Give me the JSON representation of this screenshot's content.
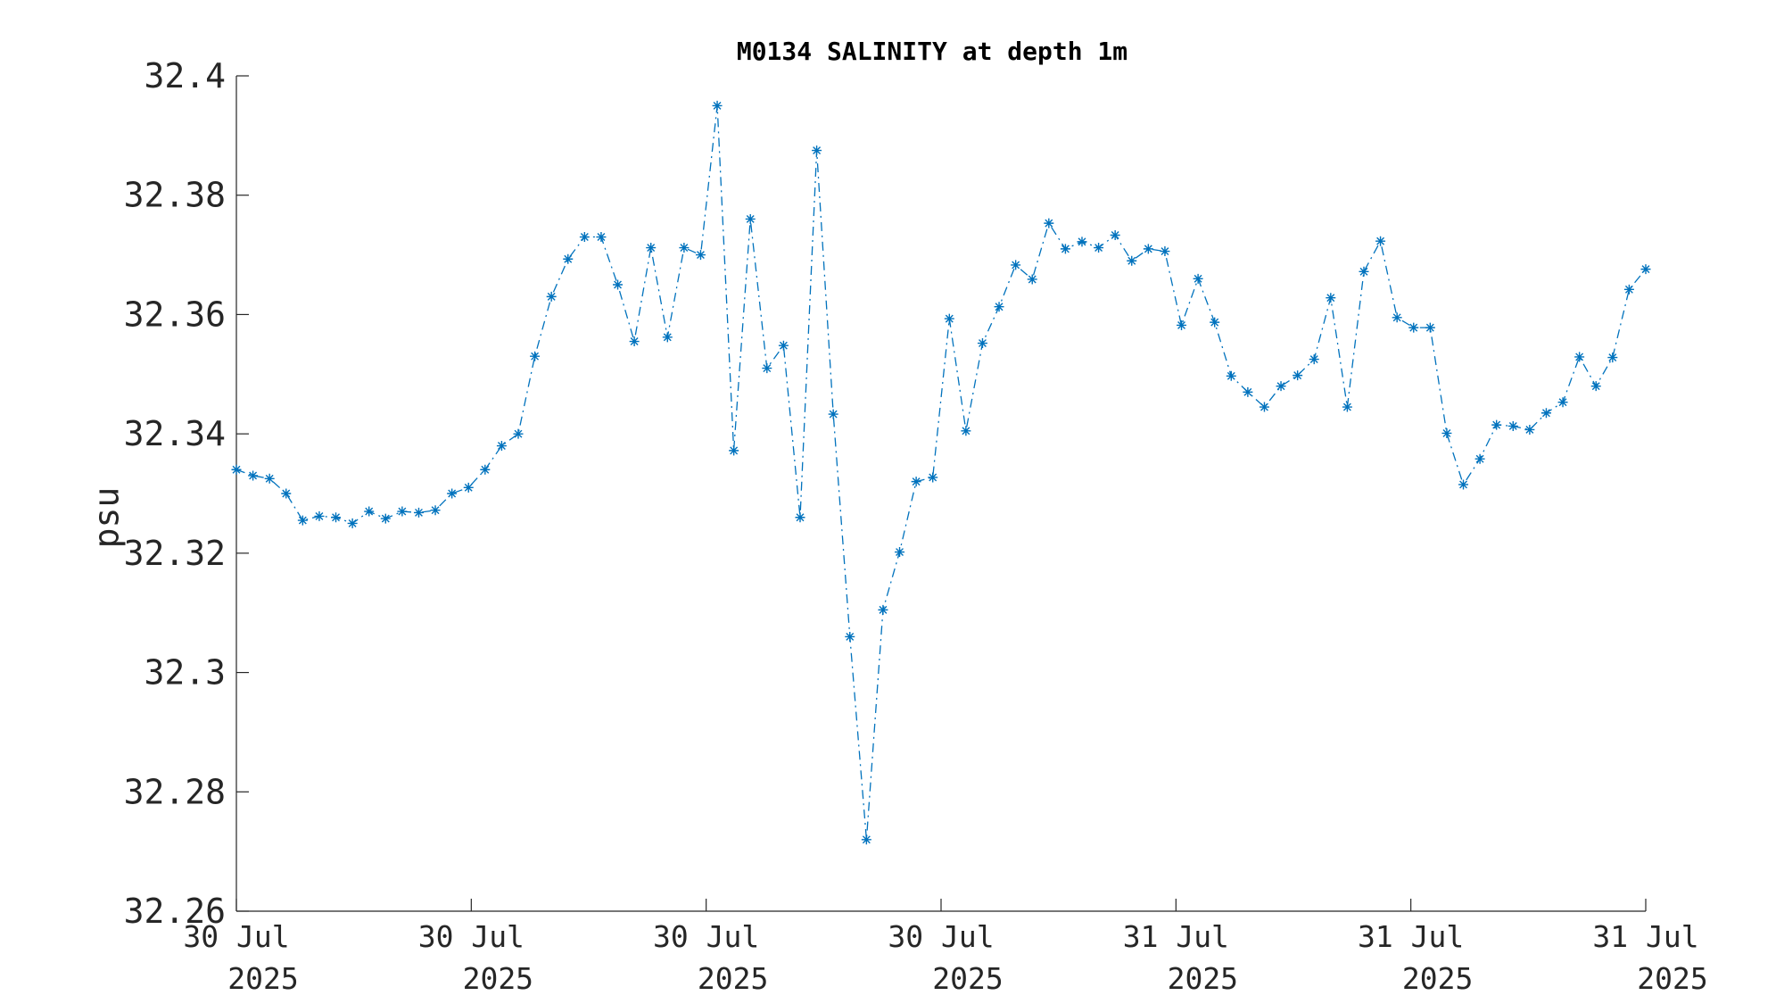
{
  "chart_data": {
    "type": "line",
    "title": "M0134 SALINITY at depth 1m",
    "ylabel": "psu",
    "xlabel": "",
    "ylim": [
      32.26,
      32.4
    ],
    "yticks": [
      "32.26",
      "32.28",
      "32.3",
      "32.32",
      "32.34",
      "32.36",
      "32.38",
      "32.4"
    ],
    "xticks": [
      {
        "line1": "30 Jul",
        "line2": "2025"
      },
      {
        "line1": "30 Jul",
        "line2": "2025"
      },
      {
        "line1": "30 Jul",
        "line2": "2025"
      },
      {
        "line1": "30 Jul",
        "line2": "2025"
      },
      {
        "line1": "31 Jul",
        "line2": "2025"
      },
      {
        "line1": "31 Jul",
        "line2": "2025"
      },
      {
        "line1": "31 Jul",
        "line2": "2025"
      }
    ],
    "marker": "asterisk",
    "line_style": "dash-dot",
    "color": "#0072BD",
    "series": [
      {
        "values": [
          32.334,
          32.333,
          32.3325,
          32.33,
          32.3255,
          32.3262,
          32.326,
          32.325,
          32.327,
          32.3258,
          32.327,
          32.3268,
          32.3272,
          32.33,
          32.331,
          32.334,
          32.338,
          32.34,
          32.353,
          32.363,
          32.3693,
          32.373,
          32.373,
          32.365,
          32.3555,
          32.3712,
          32.3562,
          32.3712,
          32.37,
          32.395,
          32.3372,
          32.376,
          32.351,
          32.3548,
          32.326,
          32.3875,
          32.3433,
          32.306,
          32.272,
          32.3105,
          32.3202,
          32.332,
          32.3327,
          32.3593,
          32.3405,
          32.3552,
          32.3613,
          32.3683,
          32.3659,
          32.3753,
          32.371,
          32.3722,
          32.3712,
          32.3733,
          32.369,
          32.371,
          32.3706,
          32.3582,
          32.366,
          32.3587,
          32.3497,
          32.347,
          32.3445,
          32.348,
          32.3498,
          32.3525,
          32.3628,
          32.3445,
          32.3672,
          32.3723,
          32.3595,
          32.3578,
          32.3578,
          32.3401,
          32.3315,
          32.3358,
          32.3415,
          32.3413,
          32.3407,
          32.3435,
          32.3453,
          32.3529,
          32.348,
          32.3528,
          32.3642,
          32.3676
        ]
      }
    ]
  }
}
